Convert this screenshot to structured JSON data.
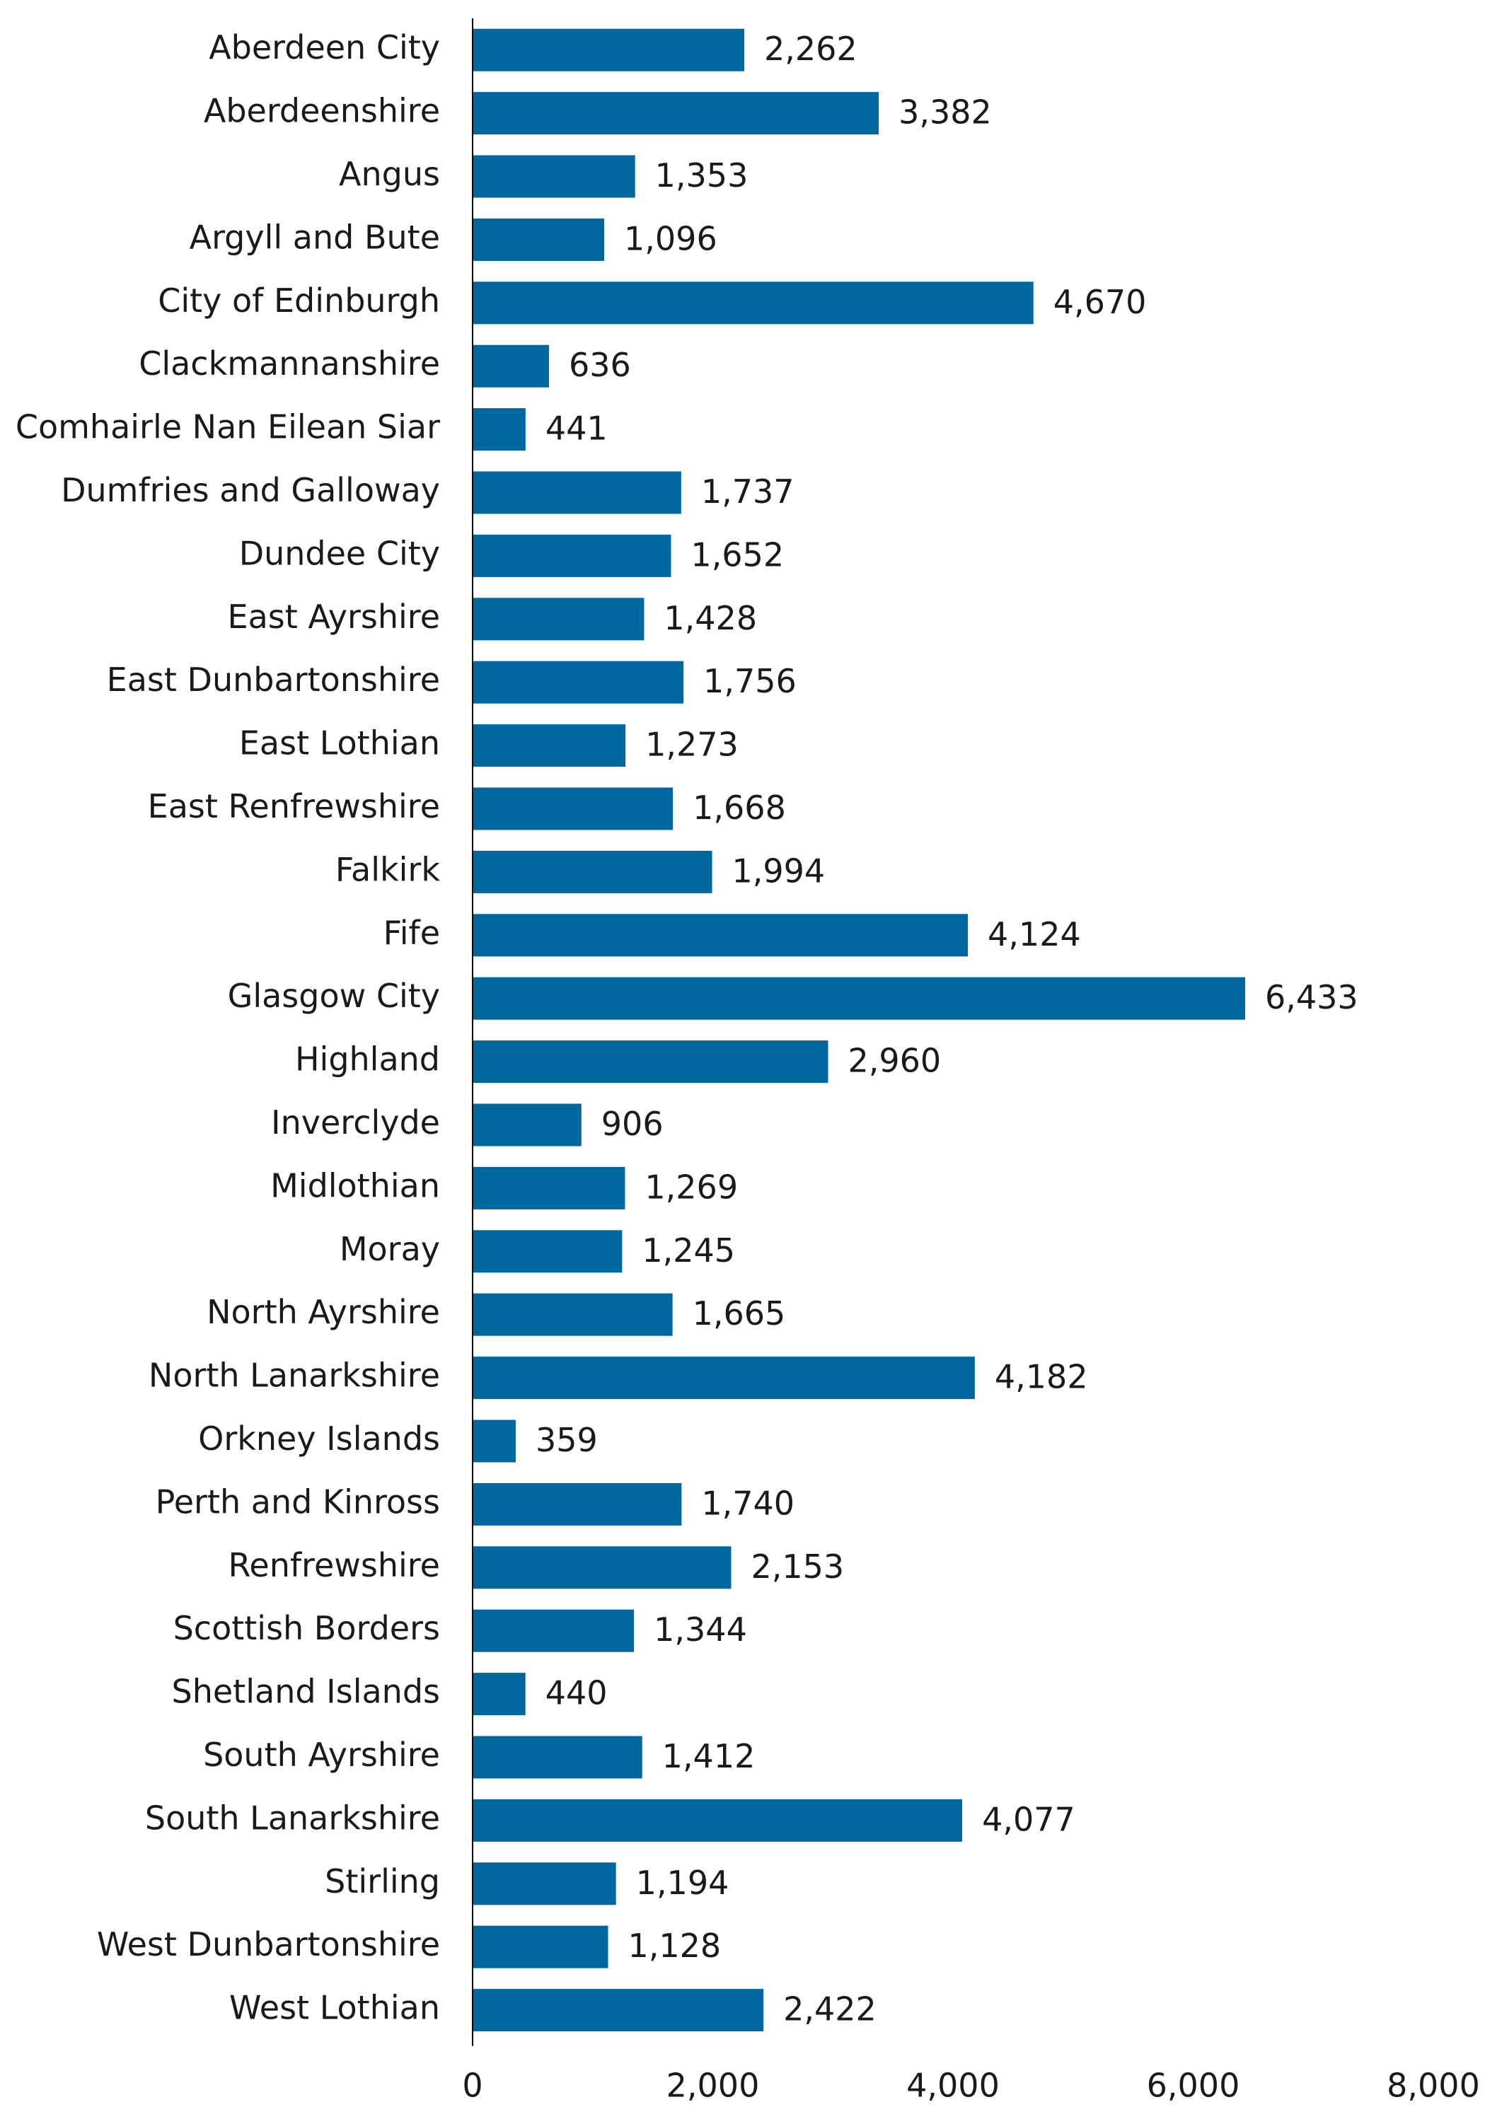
{
  "chart_data": {
    "type": "bar",
    "orientation": "horizontal",
    "color": "#00689f",
    "categories": [
      "Aberdeen City",
      "Aberdeenshire",
      "Angus",
      "Argyll and Bute",
      "City of Edinburgh",
      "Clackmannanshire",
      "Comhairle Nan Eilean Siar",
      "Dumfries and Galloway",
      "Dundee City",
      "East Ayrshire",
      "East Dunbartonshire",
      "East Lothian",
      "East Renfrewshire",
      "Falkirk",
      "Fife",
      "Glasgow City",
      "Highland",
      "Inverclyde",
      "Midlothian",
      "Moray",
      "North Ayrshire",
      "North Lanarkshire",
      "Orkney Islands",
      "Perth and Kinross",
      "Renfrewshire",
      "Scottish Borders",
      "Shetland Islands",
      "South Ayrshire",
      "South Lanarkshire",
      "Stirling",
      "West Dunbartonshire",
      "West Lothian"
    ],
    "values": [
      2262,
      3382,
      1353,
      1096,
      4670,
      636,
      441,
      1737,
      1652,
      1428,
      1756,
      1273,
      1668,
      1994,
      4124,
      6433,
      2960,
      906,
      1269,
      1245,
      1665,
      4182,
      359,
      1740,
      2153,
      1344,
      440,
      1412,
      4077,
      1194,
      1128,
      2422
    ],
    "value_labels": [
      "2,262",
      "3,382",
      "1,353",
      "1,096",
      "4,670",
      "636",
      "441",
      "1,737",
      "1,652",
      "1,428",
      "1,756",
      "1,273",
      "1,668",
      "1,994",
      "4,124",
      "6,433",
      "2,960",
      "906",
      "1,269",
      "1,245",
      "1,665",
      "4,182",
      "359",
      "1,740",
      "2,153",
      "1,344",
      "440",
      "1,412",
      "4,077",
      "1,194",
      "1,128",
      "2,422"
    ],
    "xlim": [
      0,
      8000
    ],
    "xticks": [
      0,
      {
        "value": 2000,
        "label": "2,000"
      },
      {
        "value": 4000,
        "label": "4,000"
      },
      {
        "value": 6000,
        "label": "6,000"
      },
      {
        "value": 8000,
        "label": "8,000"
      }
    ],
    "grid": false
  }
}
